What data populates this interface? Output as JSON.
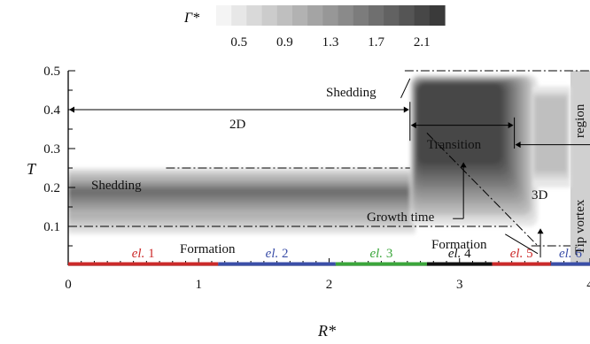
{
  "chart_data": {
    "type": "heatmap",
    "xlabel": "R*",
    "ylabel": "T",
    "xlim": [
      0,
      4
    ],
    "ylim": [
      0,
      0.5
    ],
    "x_ticks": [
      0,
      1,
      2,
      3,
      4
    ],
    "y_ticks": [
      0.1,
      0.2,
      0.3,
      0.4,
      0.5
    ],
    "x_tick_labels": [
      "0",
      "1",
      "2",
      "3",
      "4"
    ],
    "y_tick_labels": [
      "0.1",
      "0.2",
      "0.3",
      "0.4",
      "0.5"
    ],
    "colorbar": {
      "title": "Γ*",
      "range": [
        0.3,
        2.3
      ],
      "ticks": [
        0.5,
        0.9,
        1.3,
        1.7,
        2.1
      ],
      "tick_labels": [
        "0.5",
        "0.9",
        "1.3",
        "1.7",
        "2.1"
      ],
      "levels": 15,
      "color_low": "#f4f4f4",
      "color_high": "#3a3a3a"
    },
    "regions": [
      {
        "name": "2D",
        "x": [
          0,
          2.62
        ],
        "t": [
          0.08,
          0.25
        ],
        "core_t": 0.19,
        "core_value": 1.9
      },
      {
        "name": "Transition",
        "x": [
          2.62,
          3.6
        ],
        "t": [
          0.1,
          0.49
        ],
        "core_value": 2.2
      },
      {
        "name": "3D",
        "x": [
          3.6,
          3.85
        ],
        "t": [
          0.2,
          0.46
        ],
        "core_value": 0.8
      }
    ],
    "elements": [
      {
        "label": "el. 1",
        "x": [
          0,
          1.15
        ],
        "color": "#cc2a2a"
      },
      {
        "label": "el. 2",
        "x": [
          1.15,
          2.05
        ],
        "color": "#3a4ea8"
      },
      {
        "label": "el. 3",
        "x": [
          2.05,
          2.75
        ],
        "color": "#3aa63a"
      },
      {
        "label": "el. 4",
        "x": [
          2.75,
          3.25
        ],
        "color": "#111111"
      },
      {
        "label": "el. 5",
        "x": [
          3.25,
          3.7
        ],
        "color": "#cc2a2a"
      },
      {
        "label": "el. 6",
        "x": [
          3.7,
          4.0
        ],
        "color": "#3a4ea8"
      }
    ],
    "annotations": {
      "shedding_top": "Shedding",
      "shedding_left": "Shedding",
      "formation_left": "Formation",
      "formation_right": "Formation",
      "growth_time": "Growth time",
      "transition": "Transition",
      "two_d": "2D",
      "three_d": "3D",
      "tip_vortex": "Tip vortex",
      "region": "region"
    },
    "guide_lines": {
      "shedding_2d_t": 0.25,
      "formation_t": 0.1,
      "shedding_3d_t": 0.5
    },
    "tip_region": {
      "x": [
        3.85,
        4.0
      ],
      "t": [
        0.0,
        0.5
      ],
      "color": "#d0d0d0"
    }
  }
}
